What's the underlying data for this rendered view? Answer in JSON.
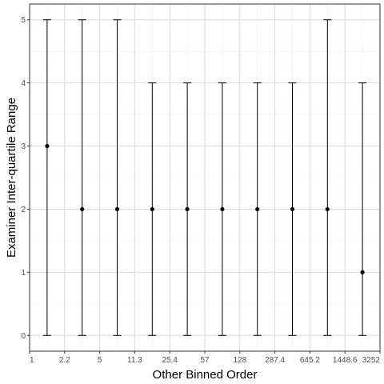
{
  "chart_data": {
    "type": "errorbar",
    "xlabel": "Other Binned Order",
    "ylabel": "Examiner Inter-quartile Range",
    "x_tick_labels": [
      "1",
      "2.2",
      "5",
      "11.3",
      "25.4",
      "57",
      "128",
      "287.4",
      "645.2",
      "1448.6",
      "3252"
    ],
    "y_ticks": [
      0,
      1,
      2,
      3,
      4,
      5
    ],
    "ylim": [
      -0.25,
      5.25
    ],
    "grid": true,
    "points": [
      {
        "y": 3,
        "ymin": 0,
        "ymax": 5
      },
      {
        "y": 2,
        "ymin": 0,
        "ymax": 5
      },
      {
        "y": 2,
        "ymin": 0,
        "ymax": 5
      },
      {
        "y": 2,
        "ymin": 0,
        "ymax": 4
      },
      {
        "y": 2,
        "ymin": 0,
        "ymax": 4
      },
      {
        "y": 2,
        "ymin": 0,
        "ymax": 4
      },
      {
        "y": 2,
        "ymin": 0,
        "ymax": 4
      },
      {
        "y": 2,
        "ymin": 0,
        "ymax": 4
      },
      {
        "y": 2,
        "ymin": 0,
        "ymax": 5
      },
      {
        "y": 1,
        "ymin": 0,
        "ymax": 4
      }
    ]
  }
}
